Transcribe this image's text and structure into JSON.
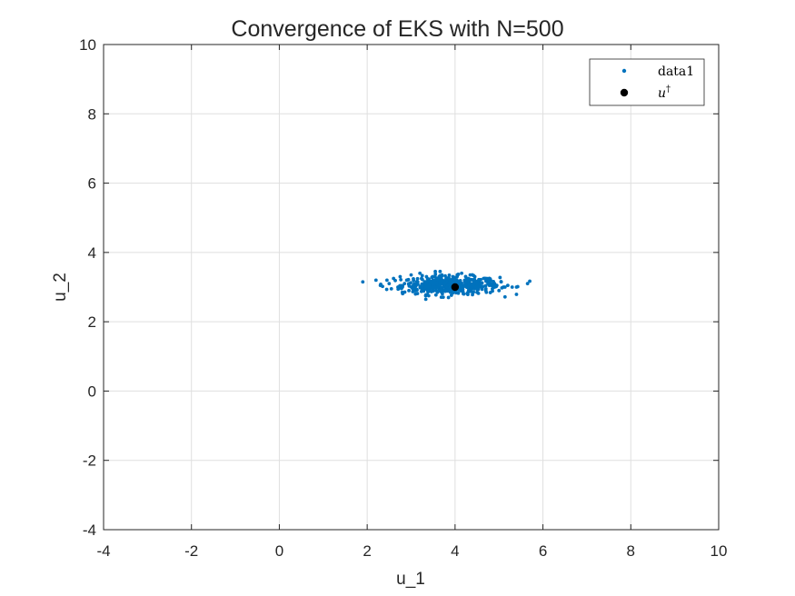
{
  "chart_data": {
    "type": "scatter",
    "title": "Convergence of EKS with N=500",
    "xlabel": "u_1",
    "ylabel": "u_2",
    "xlim": [
      -4,
      10
    ],
    "ylim": [
      -4,
      10
    ],
    "xticks": [
      -4,
      -2,
      0,
      2,
      4,
      6,
      8,
      10
    ],
    "yticks": [
      -4,
      -2,
      0,
      2,
      4,
      6,
      8,
      10
    ],
    "xtick_labels": [
      "-4",
      "-2",
      "0",
      "2",
      "4",
      "6",
      "8",
      "10"
    ],
    "ytick_labels": [
      "-4",
      "-2",
      "0",
      "2",
      "4",
      "6",
      "8",
      "10"
    ],
    "grid": true,
    "legend_position": "top-right",
    "series": [
      {
        "name": "data1",
        "color": "#0072BD",
        "marker": "dot",
        "n_points": 500,
        "cluster": {
          "x_range": [
            1.9,
            5.7
          ],
          "y_range": [
            2.65,
            3.45
          ],
          "center": [
            3.9,
            3.05
          ]
        },
        "points": [
          [
            1.9,
            3.15
          ],
          [
            5.7,
            3.17
          ],
          [
            5.65,
            3.1
          ],
          [
            5.4,
            3.0
          ],
          [
            5.2,
            3.05
          ],
          [
            5.3,
            3.0
          ],
          [
            2.3,
            3.05
          ],
          [
            2.35,
            3.02
          ],
          [
            2.45,
            3.2
          ],
          [
            2.5,
            3.1
          ],
          [
            2.55,
            2.95
          ],
          [
            2.6,
            3.25
          ],
          [
            2.7,
            3.0
          ],
          [
            2.75,
            3.3
          ],
          [
            2.8,
            2.85
          ],
          [
            2.85,
            3.1
          ],
          [
            2.9,
            3.2
          ],
          [
            2.95,
            2.9
          ],
          [
            3.0,
            3.35
          ],
          [
            3.05,
            3.05
          ],
          [
            3.1,
            2.8
          ],
          [
            3.15,
            3.15
          ],
          [
            3.2,
            3.4
          ],
          [
            3.25,
            2.95
          ],
          [
            3.3,
            3.1
          ],
          [
            3.35,
            3.3
          ],
          [
            3.4,
            2.75
          ],
          [
            3.45,
            3.0
          ],
          [
            3.5,
            3.2
          ],
          [
            3.55,
            3.45
          ],
          [
            3.6,
            2.85
          ],
          [
            3.65,
            3.1
          ],
          [
            3.7,
            3.35
          ],
          [
            3.75,
            2.9
          ],
          [
            3.8,
            3.2
          ],
          [
            3.85,
            2.7
          ],
          [
            3.9,
            3.05
          ],
          [
            3.95,
            3.3
          ],
          [
            4.05,
            2.95
          ],
          [
            4.1,
            3.15
          ],
          [
            4.15,
            3.4
          ],
          [
            4.2,
            2.8
          ],
          [
            4.25,
            3.1
          ],
          [
            4.3,
            3.25
          ],
          [
            4.35,
            2.9
          ],
          [
            4.4,
            3.05
          ],
          [
            4.45,
            3.3
          ],
          [
            4.5,
            2.85
          ],
          [
            4.55,
            3.15
          ],
          [
            4.6,
            3.0
          ],
          [
            4.65,
            3.25
          ],
          [
            4.7,
            2.9
          ],
          [
            4.75,
            3.1
          ],
          [
            4.8,
            3.2
          ],
          [
            4.85,
            2.95
          ],
          [
            4.9,
            3.1
          ],
          [
            4.95,
            3.05
          ],
          [
            5.0,
            2.9
          ],
          [
            5.05,
            3.15
          ],
          [
            5.1,
            3.0
          ]
        ]
      },
      {
        "name": "u^†",
        "color": "#000000",
        "marker": "filled-circle",
        "points": [
          [
            4,
            3
          ]
        ]
      }
    ],
    "legend": {
      "entries": [
        {
          "label_base": "data1",
          "label_sup": "",
          "color": "#0072BD",
          "marker": "dot"
        },
        {
          "label_base": "u",
          "label_sup": "†",
          "color": "#000000",
          "marker": "filled-circle"
        }
      ]
    }
  }
}
